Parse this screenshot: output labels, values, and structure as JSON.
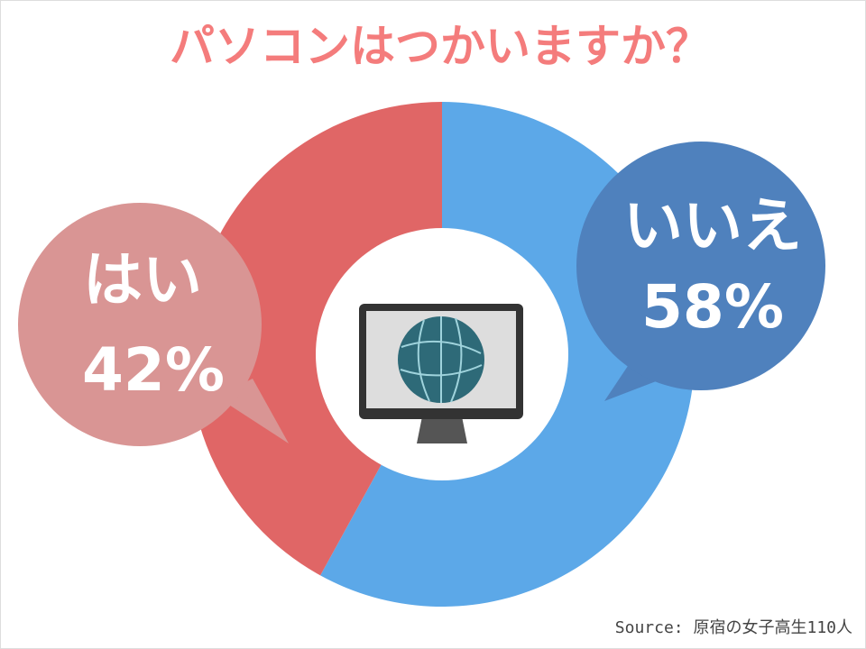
{
  "chart_data": {
    "type": "pie",
    "title": "パソコンはつかいますか？",
    "categories": [
      "いいえ",
      "はい"
    ],
    "values": [
      58,
      42
    ],
    "value_labels": [
      "58%",
      "42%"
    ],
    "colors": [
      "#5ca8e8",
      "#e06666"
    ],
    "donut": true,
    "source": "Source: 原宿の女子高生110人"
  }
}
